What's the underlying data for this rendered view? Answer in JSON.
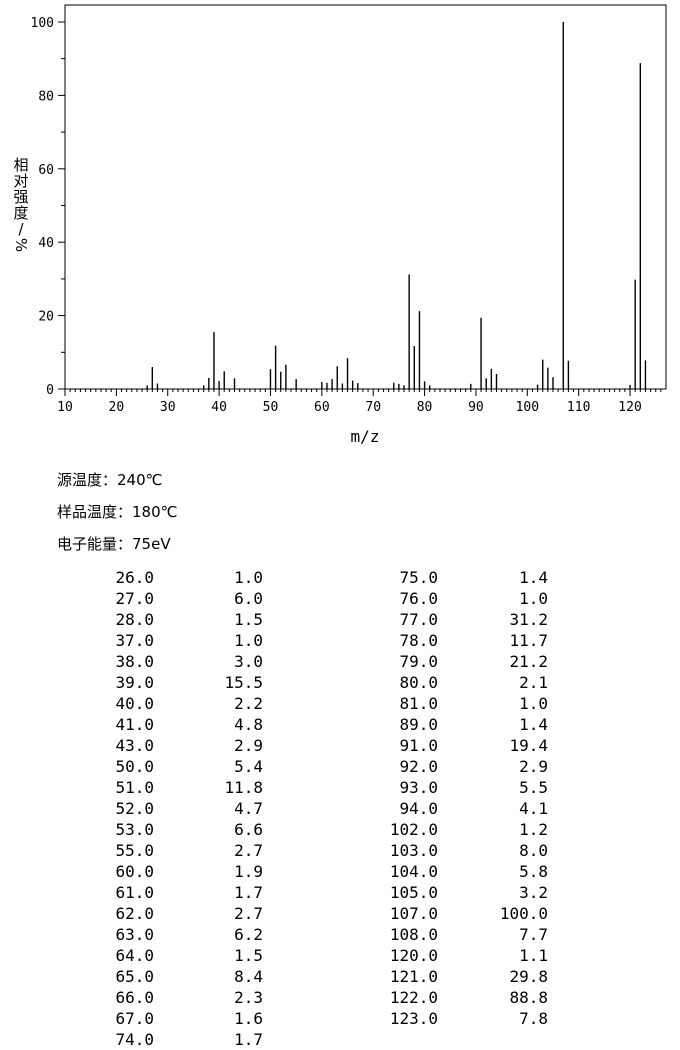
{
  "chart_data": {
    "type": "bar",
    "title": "",
    "xlabel": "m/z",
    "ylabel": "相对强度/%",
    "xlim": [
      10,
      127
    ],
    "ylim": [
      0,
      104
    ],
    "x_ticks": [
      "10",
      "20",
      "30",
      "40",
      "50",
      "60",
      "70",
      "80",
      "90",
      "100",
      "110",
      "120"
    ],
    "y_ticks": [
      "0",
      "20",
      "40",
      "60",
      "80",
      "100"
    ],
    "peaks": [
      {
        "mz": 26.0,
        "intensity": 1.0
      },
      {
        "mz": 27.0,
        "intensity": 6.0
      },
      {
        "mz": 28.0,
        "intensity": 1.5
      },
      {
        "mz": 37.0,
        "intensity": 1.0
      },
      {
        "mz": 38.0,
        "intensity": 3.0
      },
      {
        "mz": 39.0,
        "intensity": 15.5
      },
      {
        "mz": 40.0,
        "intensity": 2.2
      },
      {
        "mz": 41.0,
        "intensity": 4.8
      },
      {
        "mz": 43.0,
        "intensity": 2.9
      },
      {
        "mz": 50.0,
        "intensity": 5.4
      },
      {
        "mz": 51.0,
        "intensity": 11.8
      },
      {
        "mz": 52.0,
        "intensity": 4.7
      },
      {
        "mz": 53.0,
        "intensity": 6.6
      },
      {
        "mz": 55.0,
        "intensity": 2.7
      },
      {
        "mz": 60.0,
        "intensity": 1.9
      },
      {
        "mz": 61.0,
        "intensity": 1.7
      },
      {
        "mz": 62.0,
        "intensity": 2.7
      },
      {
        "mz": 63.0,
        "intensity": 6.2
      },
      {
        "mz": 64.0,
        "intensity": 1.5
      },
      {
        "mz": 65.0,
        "intensity": 8.4
      },
      {
        "mz": 66.0,
        "intensity": 2.3
      },
      {
        "mz": 67.0,
        "intensity": 1.6
      },
      {
        "mz": 74.0,
        "intensity": 1.7
      },
      {
        "mz": 75.0,
        "intensity": 1.4
      },
      {
        "mz": 76.0,
        "intensity": 1.0
      },
      {
        "mz": 77.0,
        "intensity": 31.2
      },
      {
        "mz": 78.0,
        "intensity": 11.7
      },
      {
        "mz": 79.0,
        "intensity": 21.2
      },
      {
        "mz": 80.0,
        "intensity": 2.1
      },
      {
        "mz": 81.0,
        "intensity": 1.0
      },
      {
        "mz": 89.0,
        "intensity": 1.4
      },
      {
        "mz": 91.0,
        "intensity": 19.4
      },
      {
        "mz": 92.0,
        "intensity": 2.9
      },
      {
        "mz": 93.0,
        "intensity": 5.5
      },
      {
        "mz": 94.0,
        "intensity": 4.1
      },
      {
        "mz": 102.0,
        "intensity": 1.2
      },
      {
        "mz": 103.0,
        "intensity": 8.0
      },
      {
        "mz": 104.0,
        "intensity": 5.8
      },
      {
        "mz": 105.0,
        "intensity": 3.2
      },
      {
        "mz": 107.0,
        "intensity": 100.0
      },
      {
        "mz": 108.0,
        "intensity": 7.7
      },
      {
        "mz": 120.0,
        "intensity": 1.1
      },
      {
        "mz": 121.0,
        "intensity": 29.8
      },
      {
        "mz": 122.0,
        "intensity": 88.8
      },
      {
        "mz": 123.0,
        "intensity": 7.8
      }
    ]
  },
  "conditions": {
    "source_temp": "源温度：240℃",
    "sample_temp": "样品温度：180℃",
    "electron_energy": "电子能量：75eV"
  },
  "peak_table": {
    "left": {
      "mz": [
        "26.0",
        "27.0",
        "28.0",
        "37.0",
        "38.0",
        "39.0",
        "40.0",
        "41.0",
        "43.0",
        "50.0",
        "51.0",
        "52.0",
        "53.0",
        "55.0",
        "60.0",
        "61.0",
        "62.0",
        "63.0",
        "64.0",
        "65.0",
        "66.0",
        "67.0",
        "74.0"
      ],
      "intensity": [
        "1.0",
        "6.0",
        "1.5",
        "1.0",
        "3.0",
        "15.5",
        "2.2",
        "4.8",
        "2.9",
        "5.4",
        "11.8",
        "4.7",
        "6.6",
        "2.7",
        "1.9",
        "1.7",
        "2.7",
        "6.2",
        "1.5",
        "8.4",
        "2.3",
        "1.6",
        "1.7"
      ]
    },
    "right": {
      "mz": [
        "75.0",
        "76.0",
        "77.0",
        "78.0",
        "79.0",
        "80.0",
        "81.0",
        "89.0",
        "91.0",
        "92.0",
        "93.0",
        "94.0",
        "102.0",
        "103.0",
        "104.0",
        "105.0",
        "107.0",
        "108.0",
        "120.0",
        "121.0",
        "122.0",
        "123.0"
      ],
      "intensity": [
        "1.4",
        "1.0",
        "31.2",
        "11.7",
        "21.2",
        "2.1",
        "1.0",
        "1.4",
        "19.4",
        "2.9",
        "5.5",
        "4.1",
        "1.2",
        "8.0",
        "5.8",
        "3.2",
        "100.0",
        "7.7",
        "1.1",
        "29.8",
        "88.8",
        "7.8"
      ]
    }
  }
}
